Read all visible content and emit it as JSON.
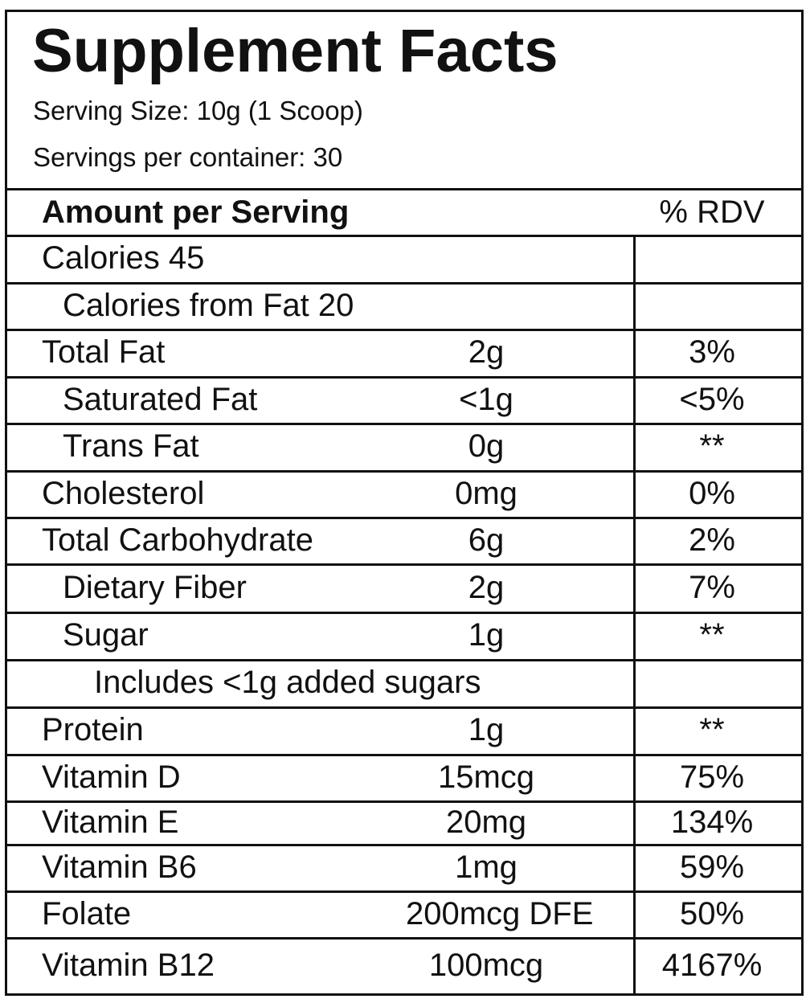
{
  "title": "Supplement Facts",
  "serving_size": "Serving Size: 10g (1 Scoop)",
  "servings_per_container": "Servings per container: 30",
  "header": {
    "amount_label": "Amount per Serving",
    "rdv_label": "% RDV"
  },
  "rows": [
    {
      "label": "Calories 45",
      "amount": "",
      "rdv": "",
      "indent": 0
    },
    {
      "label": "Calories from Fat 20",
      "amount": "",
      "rdv": "",
      "indent": 1
    },
    {
      "label": "Total Fat",
      "amount": "2g",
      "rdv": "3%",
      "indent": 0
    },
    {
      "label": "Saturated Fat",
      "amount": "<1g",
      "rdv": "<5%",
      "indent": 1
    },
    {
      "label": "Trans Fat",
      "amount": "0g",
      "rdv": "**",
      "indent": 1
    },
    {
      "label": "Cholesterol",
      "amount": "0mg",
      "rdv": "0%",
      "indent": 0
    },
    {
      "label": "Total Carbohydrate",
      "amount": "6g",
      "rdv": "2%",
      "indent": 0
    },
    {
      "label": "Dietary Fiber",
      "amount": "2g",
      "rdv": "7%",
      "indent": 1
    },
    {
      "label": "Sugar",
      "amount": "1g",
      "rdv": "**",
      "indent": 1
    },
    {
      "label": "Includes <1g added sugars",
      "amount": "",
      "rdv": "",
      "indent": 2
    },
    {
      "label": "Protein",
      "amount": "1g",
      "rdv": "**",
      "indent": 0
    },
    {
      "label": "Vitamin D",
      "amount": "15mcg",
      "rdv": "75%",
      "indent": 0
    },
    {
      "label": "Vitamin E",
      "amount": "20mg",
      "rdv": "134%",
      "indent": 0
    },
    {
      "label": "Vitamin B6",
      "amount": "1mg",
      "rdv": "59%",
      "indent": 0
    },
    {
      "label": "Folate",
      "amount": "200mcg DFE",
      "rdv": "50%",
      "indent": 0
    },
    {
      "label": "Vitamin B12",
      "amount": "100mcg",
      "rdv": "4167%",
      "indent": 0
    }
  ]
}
